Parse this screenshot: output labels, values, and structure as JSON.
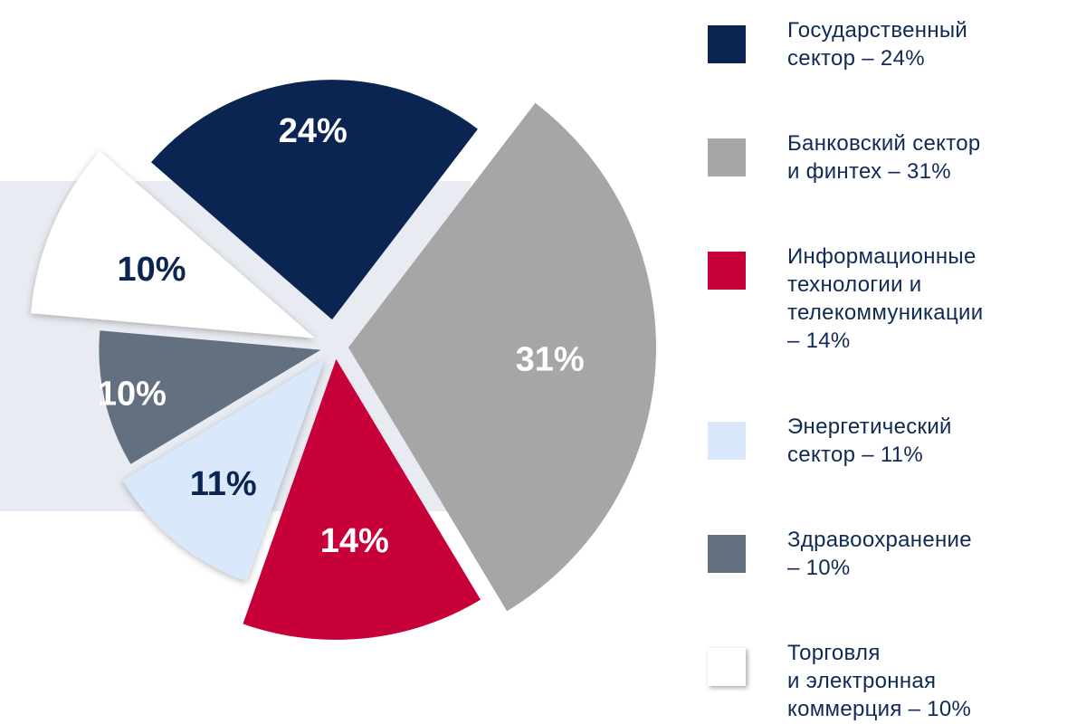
{
  "chart_data": {
    "type": "pie",
    "slices": [
      {
        "label": "Государственный\nсектор – 24%",
        "value": 24,
        "display": "24%",
        "color": "#0a2551",
        "text_color": "#ffffff"
      },
      {
        "label": "Банковский сектор\nи финтех – 31%",
        "value": 31,
        "display": "31%",
        "color": "#a6a6a6",
        "text_color": "#ffffff"
      },
      {
        "label": "Информационные\nтехнологии и\nтелекоммуникации\n– 14%",
        "value": 14,
        "display": "14%",
        "color": "#c8003a",
        "text_color": "#ffffff"
      },
      {
        "label": "Энергетический\nсектор – 11%",
        "value": 11,
        "display": "11%",
        "color": "#d9e8fb",
        "text_color": "#0a2551"
      },
      {
        "label": "Здравоохранение\n– 10%",
        "value": 10,
        "display": "10%",
        "color": "#637080",
        "text_color": "#ffffff"
      },
      {
        "label": "Торговля\nи электронная\nкоммерция – 10%",
        "value": 10,
        "display": "10%",
        "color": "#ffffff",
        "text_color": "#0a2551"
      }
    ]
  }
}
